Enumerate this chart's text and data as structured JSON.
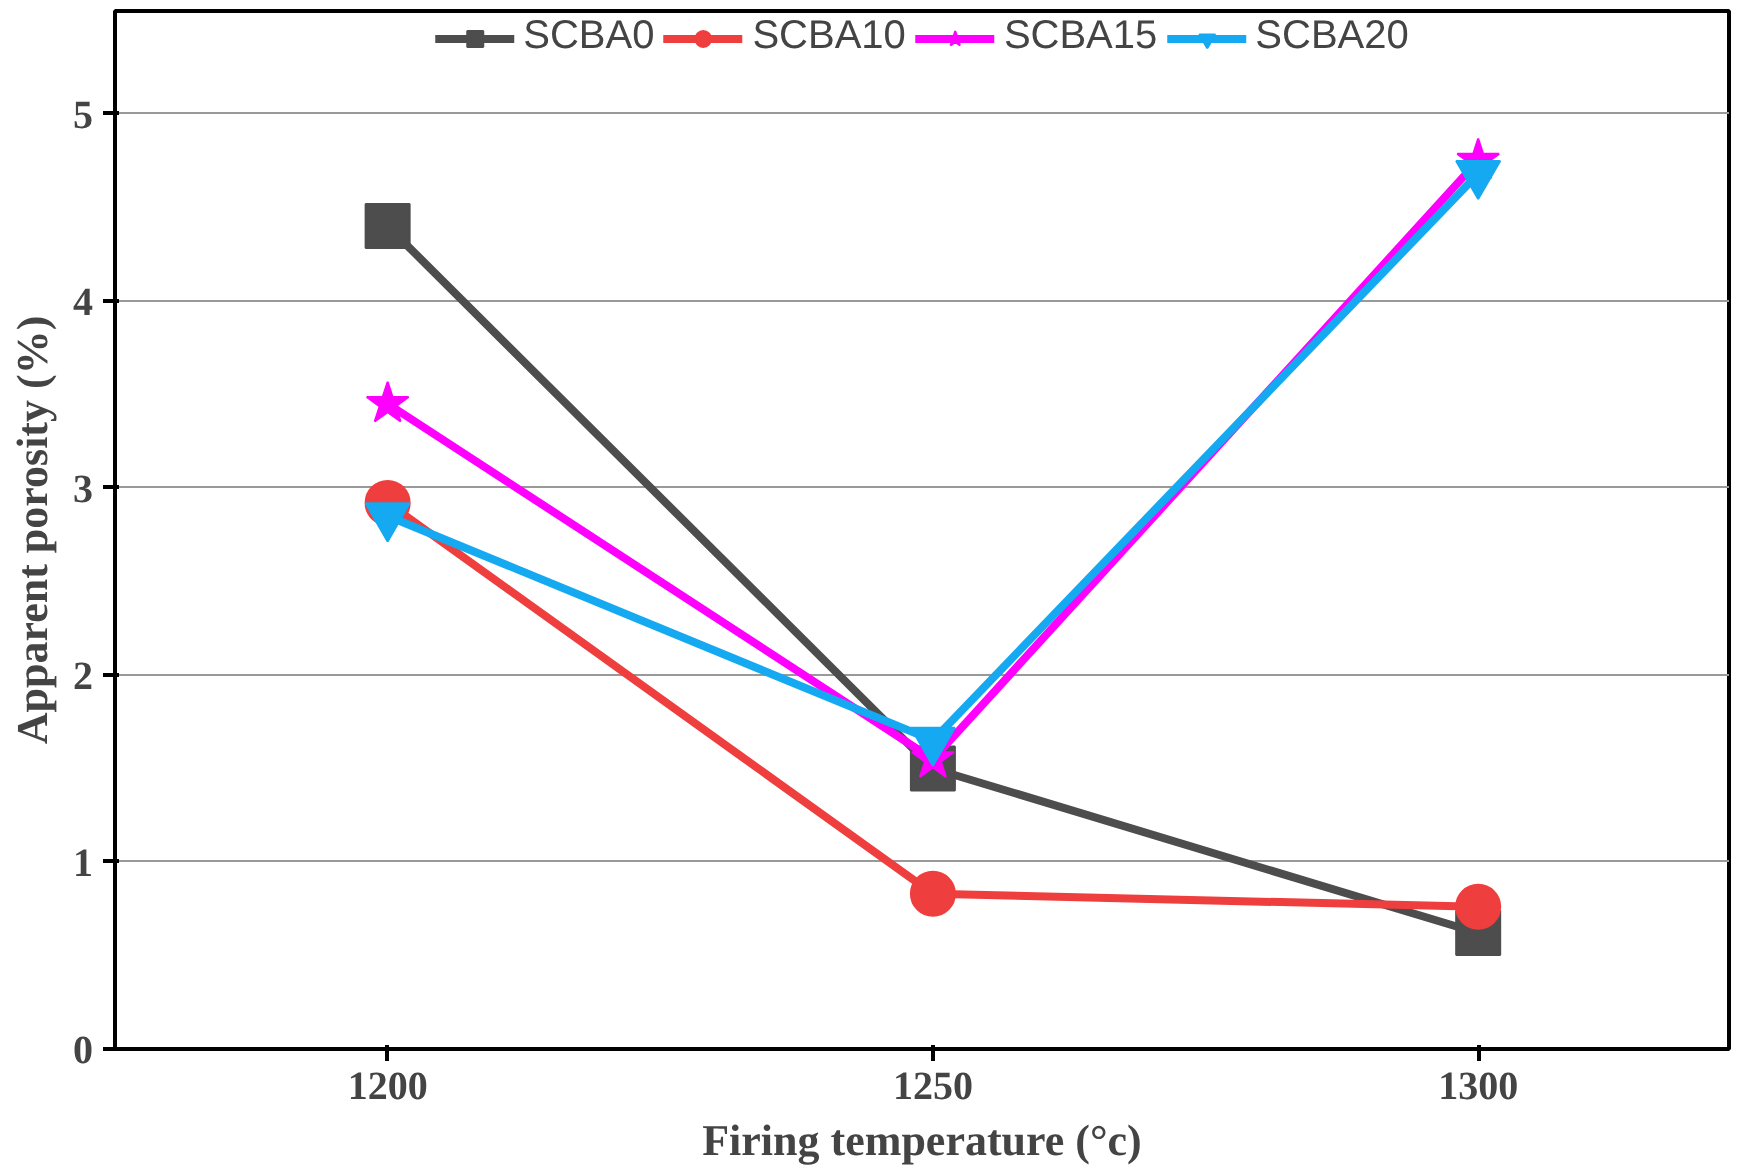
{
  "chart_data": {
    "type": "line",
    "xlabel": "Firing temperature (°c)",
    "ylabel": "Apparent porosity (%)",
    "x": [
      1200,
      1250,
      1300
    ],
    "xlim": [
      1175,
      1323
    ],
    "xticks": [
      1200,
      1250,
      1300
    ],
    "ylim": [
      0,
      5.55
    ],
    "yticks": [
      0,
      1,
      2,
      3,
      4,
      5
    ],
    "grid": "y",
    "legend": "top",
    "line_style": "solid",
    "series": [
      {
        "name": "SCBA0",
        "color": "#4d4d4d",
        "marker": "square",
        "values": [
          4.4,
          1.5,
          0.62
        ]
      },
      {
        "name": "SCBA10",
        "color": "#ef3e3e",
        "marker": "circle",
        "values": [
          2.92,
          0.83,
          0.76
        ]
      },
      {
        "name": "SCBA15",
        "color": "#ff00ff",
        "marker": "star",
        "values": [
          3.45,
          1.55,
          4.75
        ]
      },
      {
        "name": "SCBA20",
        "color": "#14a9f0",
        "marker": "triangle_down",
        "values": [
          2.85,
          1.65,
          4.68
        ]
      }
    ]
  }
}
